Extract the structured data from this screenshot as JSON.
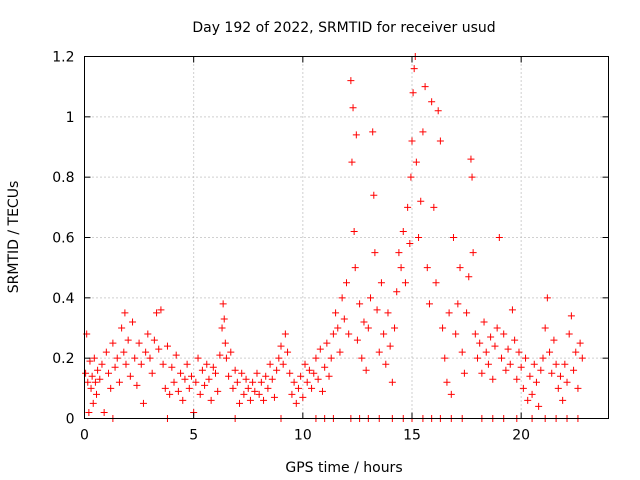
{
  "chart_data": {
    "type": "scatter",
    "title": "Day 192 of 2022, SRMTID for receiver usud",
    "xlabel": "GPS time / hours",
    "ylabel": "SRMTID / TECUs",
    "xlim": [
      0,
      24
    ],
    "ylim": [
      0,
      1.2
    ],
    "grid": true,
    "marker": "+",
    "xticks": [
      0,
      5,
      10,
      15,
      20
    ],
    "yticks": [
      0,
      0.2,
      0.4,
      0.6,
      0.8,
      1,
      1.2
    ],
    "ytick_labels": [
      "0",
      "0.2",
      "0.4",
      "0.6",
      "0.8",
      "1",
      "1.2"
    ],
    "series": [
      {
        "name": "SRMTID",
        "color": "#ff0000",
        "points": [
          [
            0.05,
            0.15
          ],
          [
            0.1,
            0.28
          ],
          [
            0.15,
            0.12
          ],
          [
            0.2,
            0.02
          ],
          [
            0.25,
            0.19
          ],
          [
            0.3,
            0.1
          ],
          [
            0.35,
            0.14
          ],
          [
            0.4,
            0.05
          ],
          [
            0.45,
            0.2
          ],
          [
            0.5,
            0.12
          ],
          [
            0.55,
            0.08
          ],
          [
            0.6,
            0.16
          ],
          [
            0.7,
            0.13
          ],
          [
            0.8,
            0.18
          ],
          [
            0.9,
            0.02
          ],
          [
            1.0,
            0.22
          ],
          [
            1.1,
            0.15
          ],
          [
            1.2,
            0.1
          ],
          [
            1.3,
            0.25
          ],
          [
            1.4,
            0.17
          ],
          [
            1.5,
            0.2
          ],
          [
            1.6,
            0.12
          ],
          [
            1.7,
            0.3
          ],
          [
            1.8,
            0.22
          ],
          [
            1.85,
            0.35
          ],
          [
            1.9,
            0.18
          ],
          [
            2.0,
            0.26
          ],
          [
            2.1,
            0.14
          ],
          [
            2.2,
            0.32
          ],
          [
            2.3,
            0.2
          ],
          [
            2.4,
            0.11
          ],
          [
            2.5,
            0.25
          ],
          [
            2.6,
            0.18
          ],
          [
            2.7,
            0.05
          ],
          [
            2.8,
            0.22
          ],
          [
            2.9,
            0.28
          ],
          [
            3.0,
            0.2
          ],
          [
            3.1,
            0.15
          ],
          [
            3.2,
            0.26
          ],
          [
            3.3,
            0.35
          ],
          [
            3.4,
            0.23
          ],
          [
            3.5,
            0.36
          ],
          [
            3.6,
            0.18
          ],
          [
            3.7,
            0.1
          ],
          [
            3.8,
            0.24
          ],
          [
            3.9,
            0.08
          ],
          [
            4.0,
            0.17
          ],
          [
            4.1,
            0.12
          ],
          [
            4.2,
            0.21
          ],
          [
            4.3,
            0.09
          ],
          [
            4.4,
            0.15
          ],
          [
            4.5,
            0.06
          ],
          [
            4.6,
            0.13
          ],
          [
            4.7,
            0.18
          ],
          [
            4.8,
            0.1
          ],
          [
            4.9,
            0.14
          ],
          [
            5.0,
            0.02
          ],
          [
            5.1,
            0.12
          ],
          [
            5.2,
            0.2
          ],
          [
            5.3,
            0.08
          ],
          [
            5.4,
            0.16
          ],
          [
            5.5,
            0.11
          ],
          [
            5.6,
            0.18
          ],
          [
            5.7,
            0.13
          ],
          [
            5.8,
            0.06
          ],
          [
            5.9,
            0.17
          ],
          [
            6.0,
            0.15
          ],
          [
            6.1,
            0.09
          ],
          [
            6.2,
            0.21
          ],
          [
            6.3,
            0.3
          ],
          [
            6.35,
            0.38
          ],
          [
            6.4,
            0.33
          ],
          [
            6.45,
            0.25
          ],
          [
            6.5,
            0.2
          ],
          [
            6.6,
            0.14
          ],
          [
            6.7,
            0.22
          ],
          [
            6.8,
            0.1
          ],
          [
            6.9,
            0.16
          ],
          [
            7.0,
            0.12
          ],
          [
            7.1,
            0.05
          ],
          [
            7.2,
            0.15
          ],
          [
            7.3,
            0.08
          ],
          [
            7.4,
            0.13
          ],
          [
            7.5,
            0.1
          ],
          [
            7.6,
            0.06
          ],
          [
            7.7,
            0.12
          ],
          [
            7.8,
            0.09
          ],
          [
            7.9,
            0.15
          ],
          [
            8.0,
            0.08
          ],
          [
            8.1,
            0.12
          ],
          [
            8.2,
            0.06
          ],
          [
            8.3,
            0.14
          ],
          [
            8.4,
            0.1
          ],
          [
            8.5,
            0.18
          ],
          [
            8.6,
            0.13
          ],
          [
            8.7,
            0.07
          ],
          [
            8.8,
            0.16
          ],
          [
            8.9,
            0.2
          ],
          [
            9.0,
            0.24
          ],
          [
            9.1,
            0.18
          ],
          [
            9.2,
            0.28
          ],
          [
            9.3,
            0.22
          ],
          [
            9.4,
            0.15
          ],
          [
            9.5,
            0.08
          ],
          [
            9.6,
            0.12
          ],
          [
            9.7,
            0.05
          ],
          [
            9.8,
            0.1
          ],
          [
            9.9,
            0.14
          ],
          [
            10.0,
            0.07
          ],
          [
            10.1,
            0.18
          ],
          [
            10.2,
            0.12
          ],
          [
            10.3,
            0.16
          ],
          [
            10.4,
            0.1
          ],
          [
            10.5,
            0.15
          ],
          [
            10.6,
            0.2
          ],
          [
            10.7,
            0.13
          ],
          [
            10.8,
            0.23
          ],
          [
            10.9,
            0.09
          ],
          [
            11.0,
            0.17
          ],
          [
            11.1,
            0.25
          ],
          [
            11.2,
            0.14
          ],
          [
            11.3,
            0.2
          ],
          [
            11.4,
            0.28
          ],
          [
            11.5,
            0.35
          ],
          [
            11.6,
            0.3
          ],
          [
            11.7,
            0.22
          ],
          [
            11.8,
            0.4
          ],
          [
            11.9,
            0.33
          ],
          [
            12.0,
            0.45
          ],
          [
            12.1,
            0.28
          ],
          [
            12.2,
            1.12
          ],
          [
            12.25,
            0.85
          ],
          [
            12.3,
            1.03
          ],
          [
            12.35,
            0.62
          ],
          [
            12.4,
            0.5
          ],
          [
            12.45,
            0.94
          ],
          [
            12.5,
            0.26
          ],
          [
            12.6,
            0.38
          ],
          [
            12.7,
            0.2
          ],
          [
            12.8,
            0.32
          ],
          [
            12.9,
            0.16
          ],
          [
            13.0,
            0.3
          ],
          [
            13.1,
            0.4
          ],
          [
            13.2,
            0.95
          ],
          [
            13.25,
            0.74
          ],
          [
            13.3,
            0.55
          ],
          [
            13.4,
            0.36
          ],
          [
            13.5,
            0.22
          ],
          [
            13.6,
            0.45
          ],
          [
            13.7,
            0.28
          ],
          [
            13.8,
            0.18
          ],
          [
            13.9,
            0.35
          ],
          [
            14.0,
            0.24
          ],
          [
            14.1,
            0.12
          ],
          [
            14.2,
            0.3
          ],
          [
            14.3,
            0.42
          ],
          [
            14.4,
            0.55
          ],
          [
            14.5,
            0.5
          ],
          [
            14.6,
            0.62
          ],
          [
            14.7,
            0.45
          ],
          [
            14.8,
            0.7
          ],
          [
            14.9,
            0.58
          ],
          [
            14.95,
            0.8
          ],
          [
            15.0,
            0.92
          ],
          [
            15.05,
            1.08
          ],
          [
            15.1,
            1.16
          ],
          [
            15.15,
            1.2
          ],
          [
            15.2,
            0.85
          ],
          [
            15.3,
            0.6
          ],
          [
            15.4,
            0.72
          ],
          [
            15.5,
            0.95
          ],
          [
            15.6,
            1.1
          ],
          [
            15.7,
            0.5
          ],
          [
            15.8,
            0.38
          ],
          [
            15.9,
            1.05
          ],
          [
            16.0,
            0.7
          ],
          [
            16.1,
            0.45
          ],
          [
            16.2,
            1.02
          ],
          [
            16.3,
            0.92
          ],
          [
            16.4,
            0.3
          ],
          [
            16.5,
            0.2
          ],
          [
            16.6,
            0.12
          ],
          [
            16.7,
            0.35
          ],
          [
            16.8,
            0.08
          ],
          [
            16.9,
            0.6
          ],
          [
            17.0,
            0.28
          ],
          [
            17.1,
            0.38
          ],
          [
            17.2,
            0.5
          ],
          [
            17.3,
            0.22
          ],
          [
            17.4,
            0.15
          ],
          [
            17.5,
            0.35
          ],
          [
            17.6,
            0.47
          ],
          [
            17.7,
            0.86
          ],
          [
            17.75,
            0.8
          ],
          [
            17.8,
            0.55
          ],
          [
            17.9,
            0.28
          ],
          [
            18.0,
            0.2
          ],
          [
            18.1,
            0.25
          ],
          [
            18.2,
            0.15
          ],
          [
            18.3,
            0.32
          ],
          [
            18.4,
            0.22
          ],
          [
            18.5,
            0.18
          ],
          [
            18.6,
            0.27
          ],
          [
            18.7,
            0.13
          ],
          [
            18.8,
            0.24
          ],
          [
            18.9,
            0.3
          ],
          [
            19.0,
            0.6
          ],
          [
            19.1,
            0.2
          ],
          [
            19.2,
            0.28
          ],
          [
            19.3,
            0.16
          ],
          [
            19.4,
            0.23
          ],
          [
            19.5,
            0.18
          ],
          [
            19.6,
            0.36
          ],
          [
            19.7,
            0.26
          ],
          [
            19.8,
            0.13
          ],
          [
            19.9,
            0.22
          ],
          [
            20.0,
            0.17
          ],
          [
            20.1,
            0.1
          ],
          [
            20.2,
            0.2
          ],
          [
            20.3,
            0.06
          ],
          [
            20.4,
            0.14
          ],
          [
            20.5,
            0.08
          ],
          [
            20.6,
            0.18
          ],
          [
            20.7,
            0.12
          ],
          [
            20.8,
            0.04
          ],
          [
            20.9,
            0.16
          ],
          [
            21.0,
            0.2
          ],
          [
            21.1,
            0.3
          ],
          [
            21.2,
            0.4
          ],
          [
            21.3,
            0.22
          ],
          [
            21.4,
            0.15
          ],
          [
            21.5,
            0.26
          ],
          [
            21.6,
            0.18
          ],
          [
            21.7,
            0.1
          ],
          [
            21.8,
            0.14
          ],
          [
            21.9,
            0.06
          ],
          [
            22.0,
            0.18
          ],
          [
            22.1,
            0.12
          ],
          [
            22.2,
            0.28
          ],
          [
            22.3,
            0.34
          ],
          [
            22.4,
            0.16
          ],
          [
            22.5,
            0.22
          ],
          [
            22.6,
            0.1
          ],
          [
            22.7,
            0.25
          ],
          [
            22.8,
            0.2
          ],
          [
            10.6,
            0
          ],
          [
            11.0,
            0
          ],
          [
            11.4,
            0
          ],
          [
            12.2,
            0
          ],
          [
            12.6,
            0
          ],
          [
            13.0,
            0
          ],
          [
            13.5,
            0
          ],
          [
            14.1,
            0
          ],
          [
            14.6,
            0
          ],
          [
            15.0,
            0
          ],
          [
            15.5,
            0
          ],
          [
            15.9,
            0
          ],
          [
            16.3,
            0
          ],
          [
            16.8,
            0
          ],
          [
            17.3,
            0
          ],
          [
            18.2,
            0
          ],
          [
            18.7,
            0
          ],
          [
            19.2,
            0
          ],
          [
            19.8,
            0
          ],
          [
            20.5,
            0
          ],
          [
            21.1,
            0
          ],
          [
            21.6,
            0
          ],
          [
            22.1,
            0
          ],
          [
            22.6,
            0
          ],
          [
            1.3,
            0
          ],
          [
            3.8,
            0
          ],
          [
            6.9,
            0
          ],
          [
            9.0,
            0
          ]
        ]
      }
    ]
  }
}
